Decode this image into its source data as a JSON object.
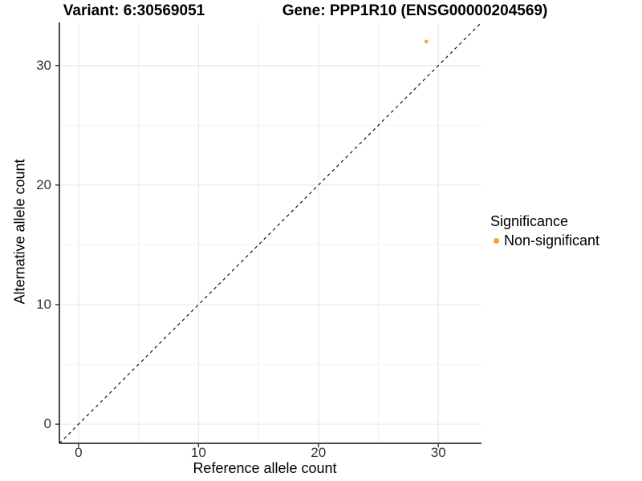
{
  "chart_data": {
    "type": "scatter",
    "title_left": "Variant: 6:30569051",
    "title_right": "Gene: PPP1R10 (ENSG00000204569)",
    "xlabel": "Reference allele count",
    "ylabel": "Alternative allele count",
    "xlim": [
      -1.6,
      33.6
    ],
    "ylim": [
      -1.6,
      33.6
    ],
    "x_major_ticks": [
      0,
      10,
      20,
      30
    ],
    "x_minor_ticks": [
      5,
      15,
      25
    ],
    "y_major_ticks": [
      0,
      10,
      20,
      30
    ],
    "y_minor_ticks": [
      5,
      15,
      25
    ],
    "grid": true,
    "reference_line": {
      "type": "identity",
      "equation": "y = x",
      "style": "dashed",
      "color": "#000000"
    },
    "series": [
      {
        "name": "Non-significant",
        "color": "#F9A32B",
        "marker": "circle",
        "points": [
          {
            "x": 29,
            "y": 32
          }
        ]
      }
    ],
    "legend": {
      "title": "Significance",
      "position": "right",
      "items": [
        {
          "label": "Non-significant",
          "color": "#F9A32B"
        }
      ]
    }
  },
  "colors": {
    "background": "#FFFFFF",
    "axis_line": "#333333",
    "tick_mark": "#333333",
    "tick_label": "#333333",
    "grid_major": "#E6E6E6",
    "grid_minor": "#F2F2F2"
  }
}
